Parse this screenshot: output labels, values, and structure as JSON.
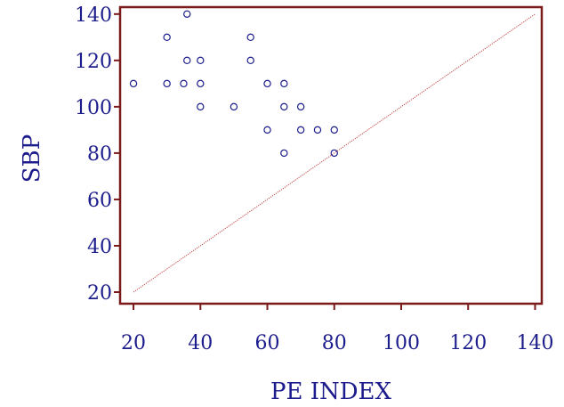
{
  "chart_data": {
    "type": "scatter",
    "title": "",
    "xlabel": "PE INDEX",
    "ylabel": "SBP",
    "xlim": [
      16,
      142
    ],
    "ylim": [
      15,
      143
    ],
    "x_ticks": [
      20,
      40,
      60,
      80,
      100,
      120,
      140
    ],
    "y_ticks": [
      20,
      40,
      60,
      80,
      100,
      120,
      140
    ],
    "x_tick_labels": [
      "20",
      "40",
      "60",
      "80",
      "100",
      "120",
      "140"
    ],
    "y_tick_labels": [
      "20",
      "40",
      "60",
      "80",
      "100",
      "120",
      "140"
    ],
    "grid": false,
    "colors": {
      "axis": "#7a1a1a",
      "text": "#1c1c8c",
      "points": "#1c1c8c",
      "reference_line": "#c04040"
    },
    "points": [
      {
        "x": 20,
        "y": 110
      },
      {
        "x": 30,
        "y": 130
      },
      {
        "x": 30,
        "y": 110
      },
      {
        "x": 35,
        "y": 110
      },
      {
        "x": 36,
        "y": 140
      },
      {
        "x": 36,
        "y": 120
      },
      {
        "x": 40,
        "y": 120
      },
      {
        "x": 40,
        "y": 110
      },
      {
        "x": 40,
        "y": 100
      },
      {
        "x": 50,
        "y": 100
      },
      {
        "x": 55,
        "y": 130
      },
      {
        "x": 55,
        "y": 120
      },
      {
        "x": 60,
        "y": 110
      },
      {
        "x": 60,
        "y": 90
      },
      {
        "x": 65,
        "y": 110
      },
      {
        "x": 65,
        "y": 100
      },
      {
        "x": 65,
        "y": 80
      },
      {
        "x": 70,
        "y": 100
      },
      {
        "x": 70,
        "y": 90
      },
      {
        "x": 75,
        "y": 90
      },
      {
        "x": 80,
        "y": 90
      },
      {
        "x": 80,
        "y": 80
      }
    ],
    "reference_line": {
      "from": [
        20,
        20
      ],
      "to": [
        140,
        140
      ],
      "style": "dotted"
    }
  }
}
